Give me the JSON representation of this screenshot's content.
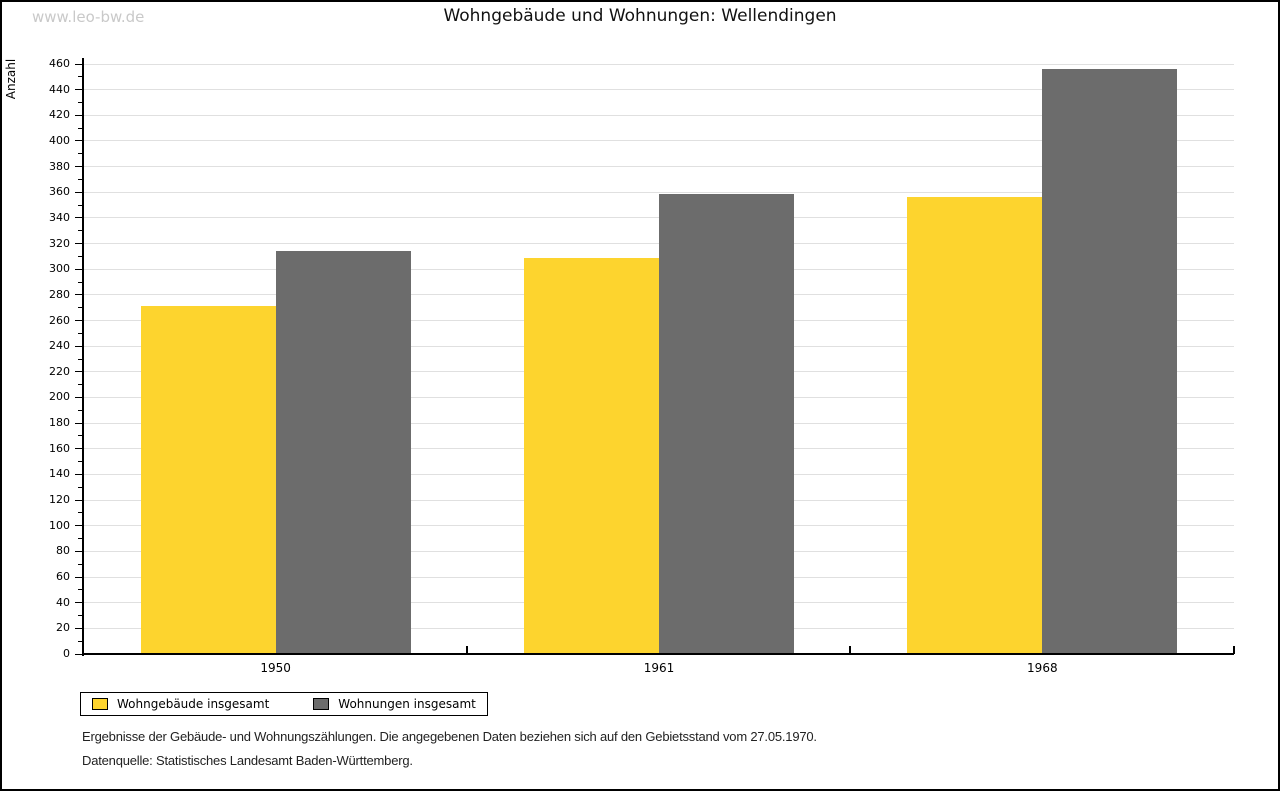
{
  "watermark": "www.leo-bw.de",
  "title": "Wohngebäude und Wohnungen: Wellendingen",
  "chart_data": {
    "type": "bar",
    "title": "Wohngebäude und Wohnungen: Wellendingen",
    "categories": [
      "1950",
      "1961",
      "1968"
    ],
    "series": [
      {
        "name": "Wohngebäude insgesamt",
        "color": "#FDD42E",
        "values": [
          271,
          309,
          356
        ]
      },
      {
        "name": "Wohnungen insgesamt",
        "color": "#6C6C6C",
        "values": [
          314,
          359,
          456
        ]
      }
    ],
    "xlabel": "",
    "ylabel": "Anzahl",
    "ylim": [
      0,
      460
    ],
    "ytick_step": 20,
    "minor_tick_step": 10,
    "grid": true,
    "legend_position": "bottom-left"
  },
  "footnotes": {
    "line1": "Ergebnisse der Gebäude- und Wohnungszählungen. Die angegebenen Daten beziehen sich auf den Gebietsstand vom 27.05.1970.",
    "line2": "Datenquelle: Statistisches Landesamt Baden-Württemberg."
  },
  "colors": {
    "bar_yellow": "#FDD42E",
    "bar_gray": "#6C6C6C",
    "gridline": "#E0E0E0",
    "axis": "#000000",
    "watermark_text": "#C9C9C9"
  }
}
